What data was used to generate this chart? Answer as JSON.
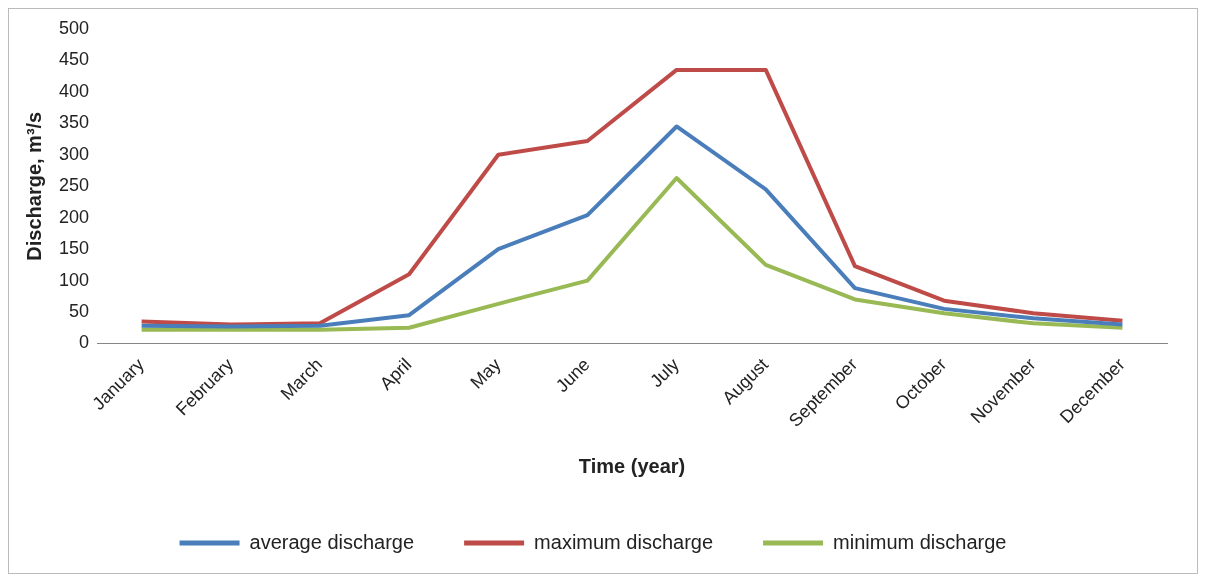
{
  "chart_data": {
    "type": "line",
    "xlabel": "Time (year)",
    "ylabel": "Discharge, m³/s",
    "categories": [
      "January",
      "February",
      "March",
      "April",
      "May",
      "June",
      "July",
      "August",
      "September",
      "October",
      "November",
      "December"
    ],
    "series": [
      {
        "name": "average discharge",
        "color": "#4a7ebb",
        "values": [
          28,
          27,
          28,
          45,
          150,
          204,
          345,
          245,
          88,
          55,
          40,
          30
        ]
      },
      {
        "name": "maximum discharge",
        "color": "#be4b48",
        "values": [
          35,
          30,
          32,
          110,
          300,
          322,
          435,
          435,
          123,
          68,
          48,
          36
        ]
      },
      {
        "name": "minimum discharge",
        "color": "#98b954",
        "values": [
          22,
          22,
          22,
          25,
          63,
          100,
          263,
          125,
          70,
          48,
          32,
          25
        ]
      }
    ],
    "ylim": [
      0,
      500
    ],
    "yticks": [
      0,
      50,
      100,
      150,
      200,
      250,
      300,
      350,
      400,
      450,
      500
    ],
    "grid": false,
    "legend": "bottom",
    "marker": "none",
    "line_style": "solid"
  }
}
